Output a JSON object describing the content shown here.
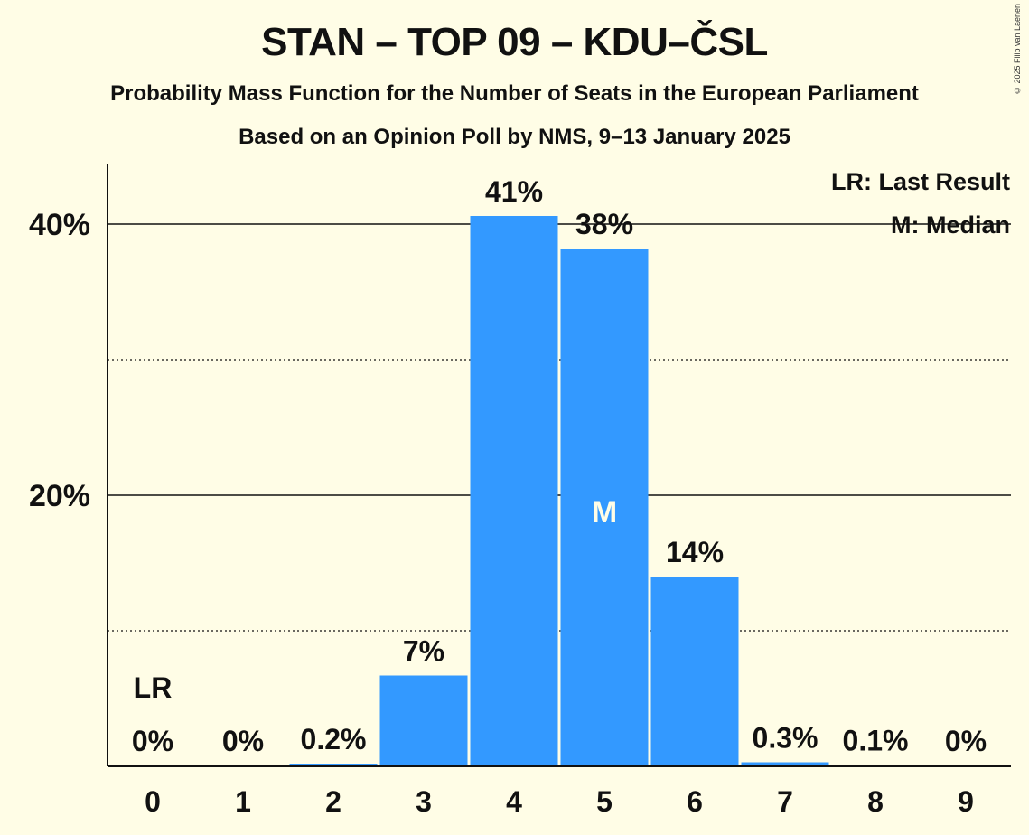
{
  "chart_data": {
    "type": "bar",
    "title": "STAN – TOP 09 – KDU–ČSL",
    "subtitle": "Probability Mass Function for the Number of Seats in the European Parliament",
    "source": "Based on an Opinion Poll by NMS, 9–13 January 2025",
    "copyright": "© 2025 Filip van Laenen",
    "xlabel": "",
    "ylabel": "",
    "ylim": [
      0,
      44
    ],
    "categories": [
      "0",
      "1",
      "2",
      "3",
      "4",
      "5",
      "6",
      "7",
      "8",
      "9"
    ],
    "values": [
      0,
      0,
      0.2,
      6.7,
      40.6,
      38.2,
      14.0,
      0.3,
      0.1,
      0
    ],
    "value_labels": [
      "0%",
      "0%",
      "0.2%",
      "7%",
      "41%",
      "38%",
      "14%",
      "0.3%",
      "0.1%",
      "0%"
    ],
    "y_ticks": [
      {
        "value": 20,
        "label": "20%"
      },
      {
        "value": 40,
        "label": "40%"
      }
    ],
    "minor_gridlines": [
      10,
      30
    ],
    "last_result": {
      "category": "0",
      "marker": "LR"
    },
    "median": {
      "category": "5",
      "marker": "M"
    },
    "legend": {
      "position": "top-right",
      "items": [
        "LR: Last Result",
        "M: Median"
      ]
    },
    "colors": {
      "bar": "#3399FF",
      "background": "#FFFDE6",
      "median_text": "#FFFDE6"
    }
  }
}
